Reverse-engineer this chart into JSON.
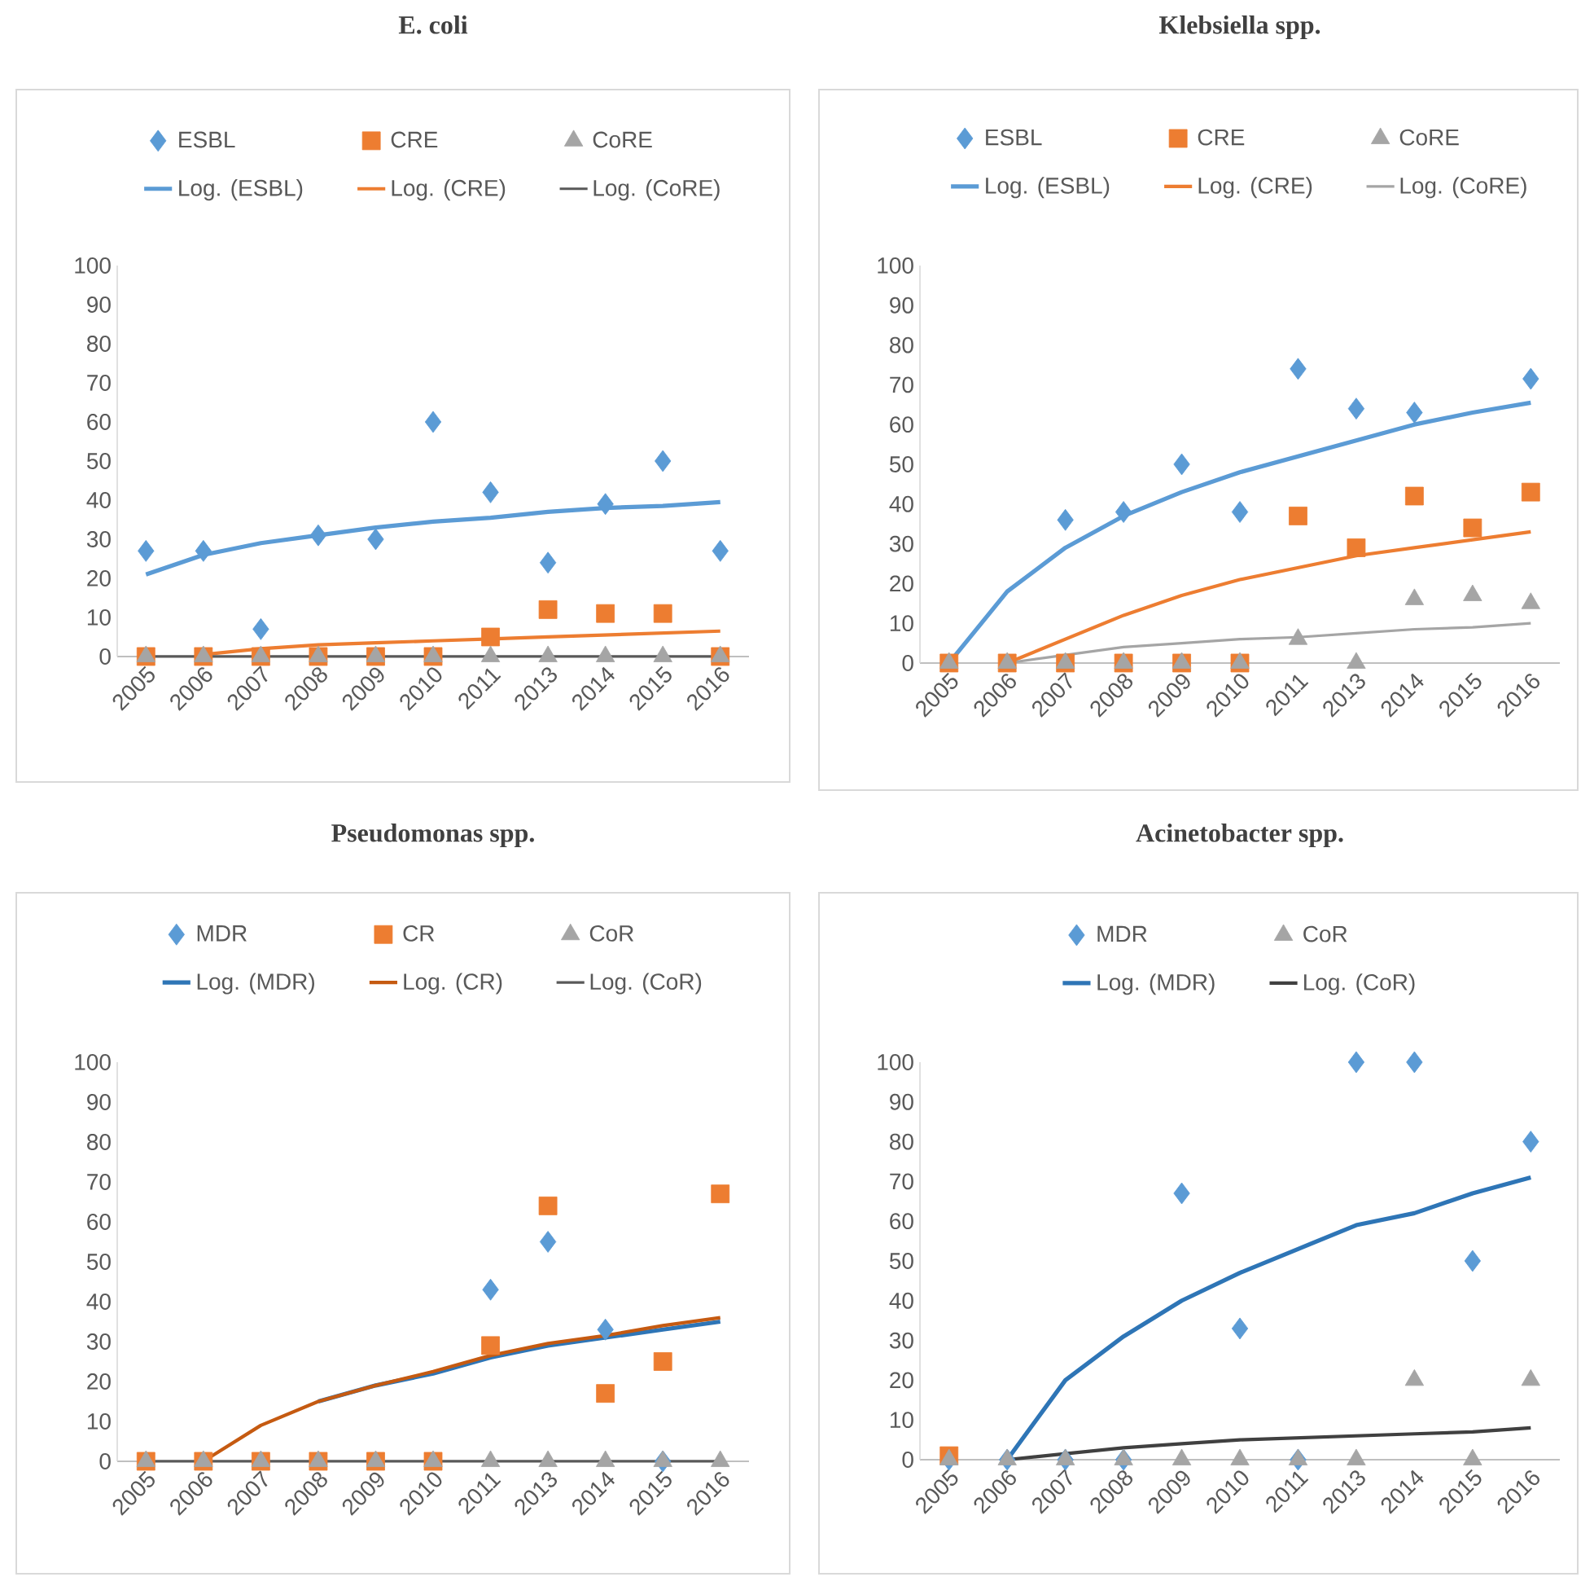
{
  "chart_data": [
    {
      "type": "scatter",
      "title": "E. coli",
      "categories": [
        "2005",
        "2006",
        "2007",
        "2008",
        "2009",
        "2010",
        "2011",
        "2013",
        "2014",
        "2015",
        "2016"
      ],
      "ylim": [
        0,
        100
      ],
      "yticks": [
        0,
        10,
        20,
        30,
        40,
        50,
        60,
        70,
        80,
        90,
        100
      ],
      "legend": "top",
      "grid": false,
      "series": [
        {
          "name": "ESBL",
          "marker": "diamond",
          "color": "#5b9bd5",
          "values": [
            27,
            27,
            7,
            31,
            30,
            60,
            42,
            24,
            39,
            50,
            27
          ]
        },
        {
          "name": "CRE",
          "marker": "square",
          "color": "#ed7d31",
          "values": [
            0,
            0,
            0,
            0,
            0,
            0,
            5,
            12,
            11,
            11,
            0
          ]
        },
        {
          "name": "CoRE",
          "marker": "triangle",
          "color": "#a5a5a5",
          "values": [
            0,
            0,
            0,
            0,
            0,
            0,
            0,
            0,
            0,
            0,
            0
          ]
        },
        {
          "name": "Log. (ESBL)",
          "type": "line",
          "color": "#5b9bd5",
          "values": [
            21,
            26,
            29,
            31,
            33,
            34.5,
            35.5,
            37,
            38,
            38.5,
            39.5
          ]
        },
        {
          "name": "Log. (CRE)",
          "type": "line",
          "color": "#ed7d31",
          "values": [
            null,
            0.5,
            2,
            3,
            3.5,
            4,
            4.5,
            5,
            5.5,
            6,
            6.5
          ]
        },
        {
          "name": "Log. (CoRE)",
          "type": "line",
          "color": "#595959",
          "values": [
            0,
            0,
            0,
            0,
            0,
            0,
            0,
            0,
            0,
            0,
            0
          ]
        }
      ]
    },
    {
      "type": "scatter",
      "title": "Klebsiella spp.",
      "categories": [
        "2005",
        "2006",
        "2007",
        "2008",
        "2009",
        "2010",
        "2011",
        "2013",
        "2014",
        "2015",
        "2016"
      ],
      "ylim": [
        0,
        100
      ],
      "yticks": [
        0,
        10,
        20,
        30,
        40,
        50,
        60,
        70,
        80,
        90,
        100
      ],
      "legend": "top",
      "grid": false,
      "series": [
        {
          "name": "ESBL",
          "marker": "diamond",
          "color": "#5b9bd5",
          "values": [
            null,
            null,
            36,
            38,
            50,
            38,
            74,
            64,
            63,
            null,
            71.5
          ]
        },
        {
          "name": "CRE",
          "marker": "square",
          "color": "#ed7d31",
          "values": [
            0,
            0,
            0,
            0,
            0,
            0,
            37,
            29,
            42,
            34,
            43
          ]
        },
        {
          "name": "CoRE",
          "marker": "triangle",
          "color": "#a5a5a5",
          "values": [
            0,
            0,
            0,
            0,
            0,
            0,
            6,
            0,
            16,
            17,
            15
          ]
        },
        {
          "name": "Log. (ESBL)",
          "type": "line",
          "color": "#5b9bd5",
          "values": [
            0,
            18,
            29,
            37,
            43,
            48,
            52,
            56,
            60,
            63,
            65.5
          ]
        },
        {
          "name": "Log. (CRE)",
          "type": "line",
          "color": "#ed7d31",
          "values": [
            null,
            0,
            6,
            12,
            17,
            21,
            24,
            27,
            29,
            31,
            33
          ]
        },
        {
          "name": "Log. (CoRE)",
          "type": "line",
          "color": "#a5a5a5",
          "values": [
            null,
            0,
            2,
            4,
            5,
            6,
            6.5,
            7.5,
            8.5,
            9,
            10
          ]
        }
      ]
    },
    {
      "type": "scatter",
      "title": "Pseudomonas spp.",
      "categories": [
        "2005",
        "2006",
        "2007",
        "2008",
        "2009",
        "2010",
        "2011",
        "2013",
        "2014",
        "2015",
        "2016"
      ],
      "ylim": [
        0,
        100
      ],
      "yticks": [
        0,
        10,
        20,
        30,
        40,
        50,
        60,
        70,
        80,
        90,
        100
      ],
      "legend": "top",
      "grid": false,
      "series": [
        {
          "name": "MDR",
          "marker": "diamond",
          "color": "#5b9bd5",
          "values": [
            null,
            null,
            null,
            null,
            null,
            null,
            43,
            55,
            33,
            0,
            null
          ]
        },
        {
          "name": "CR",
          "marker": "square",
          "color": "#ed7d31",
          "values": [
            0,
            0,
            0,
            0,
            0,
            0,
            29,
            64,
            17,
            25,
            67
          ]
        },
        {
          "name": "CoR",
          "marker": "triangle",
          "color": "#a5a5a5",
          "values": [
            0,
            0,
            0,
            0,
            0,
            0,
            0,
            0,
            0,
            0,
            0
          ]
        },
        {
          "name": "Log. (MDR)",
          "type": "line",
          "color": "#2e75b6",
          "values": [
            null,
            null,
            null,
            15,
            19,
            22,
            26,
            29,
            31,
            33,
            35
          ]
        },
        {
          "name": "Log. (CR)",
          "type": "line",
          "color": "#c55a11",
          "values": [
            null,
            0,
            9,
            15,
            19,
            22.5,
            26.5,
            29.5,
            31.5,
            34,
            36
          ]
        },
        {
          "name": "Log. (CoR)",
          "type": "line",
          "color": "#595959",
          "values": [
            0,
            0,
            0,
            0,
            0,
            0,
            0,
            0,
            0,
            0,
            0
          ]
        }
      ]
    },
    {
      "type": "scatter",
      "title": "Acinetobacter spp.",
      "categories": [
        "2005",
        "2006",
        "2007",
        "2008",
        "2009",
        "2010",
        "2011",
        "2013",
        "2014",
        "2015",
        "2016"
      ],
      "ylim": [
        0,
        100
      ],
      "yticks": [
        0,
        10,
        20,
        30,
        40,
        50,
        60,
        70,
        80,
        90,
        100
      ],
      "legend": "top",
      "grid": false,
      "series": [
        {
          "name": "MDR",
          "marker": "diamond",
          "color": "#5b9bd5",
          "values": [
            0,
            0,
            0,
            0,
            67,
            33,
            0,
            100,
            100,
            50,
            80
          ]
        },
        {
          "marker": "square",
          "color": "#ed7d31",
          "values": [
            1,
            null,
            null,
            null,
            null,
            null,
            null,
            null,
            null,
            null,
            null
          ]
        },
        {
          "name": "CoR",
          "marker": "triangle",
          "color": "#a5a5a5",
          "values": [
            0,
            0,
            0,
            0,
            0,
            0,
            0,
            0,
            20,
            0,
            20
          ]
        },
        {
          "name": "Log. (MDR)",
          "type": "line",
          "color": "#2e75b6",
          "values": [
            null,
            0,
            20,
            31,
            40,
            47,
            53,
            59,
            62,
            67,
            71
          ]
        },
        {
          "name": "Log. (CoR)",
          "type": "line",
          "color": "#404040",
          "values": [
            null,
            0,
            1.5,
            3,
            4,
            5,
            5.5,
            6,
            6.5,
            7,
            8
          ]
        }
      ]
    }
  ]
}
